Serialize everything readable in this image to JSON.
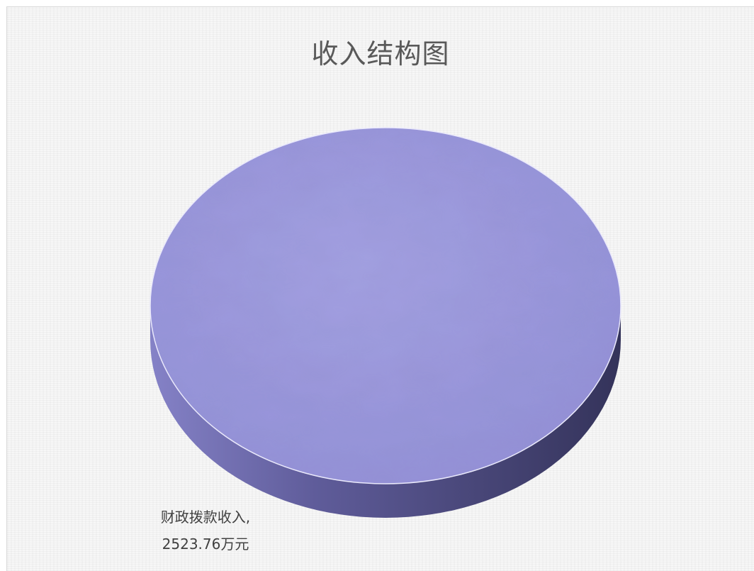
{
  "chart_data": {
    "type": "pie",
    "title": "收入结构图",
    "slices": [
      {
        "category": "财政拨款收入",
        "value": 2523.76,
        "unit": "万元",
        "label_line1": "财政拨款收入,",
        "label_line2": "2523.76万元"
      }
    ],
    "three_d": true,
    "legend": "none",
    "colors": {
      "top": "#9b98dd",
      "side_light": "#6f6caf",
      "side_dark": "#3b3a63"
    }
  }
}
